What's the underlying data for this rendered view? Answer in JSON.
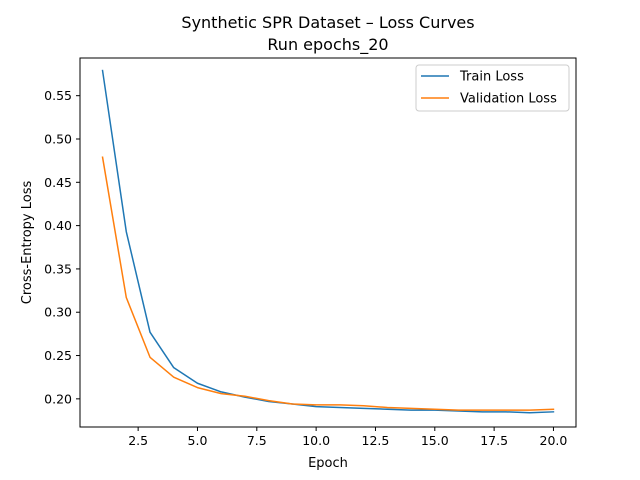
{
  "chart_data": {
    "type": "line",
    "title": "Synthetic SPR Dataset – Loss Curves",
    "subtitle": "Run epochs_20",
    "xlabel": "Epoch",
    "ylabel": "Cross-Entropy Loss",
    "xlim": [
      0.05,
      20.95
    ],
    "ylim": [
      0.1675,
      0.5935
    ],
    "xticks": [
      2.5,
      5.0,
      7.5,
      10.0,
      12.5,
      15.0,
      17.5,
      20.0
    ],
    "xtick_labels": [
      "2.5",
      "5.0",
      "7.5",
      "10.0",
      "12.5",
      "15.0",
      "17.5",
      "20.0"
    ],
    "yticks": [
      0.2,
      0.25,
      0.3,
      0.35,
      0.4,
      0.45,
      0.5,
      0.55
    ],
    "ytick_labels": [
      "0.20",
      "0.25",
      "0.30",
      "0.35",
      "0.40",
      "0.45",
      "0.50",
      "0.55"
    ],
    "grid": false,
    "legend_position": "upper right",
    "x": [
      1,
      2,
      3,
      4,
      5,
      6,
      7,
      8,
      9,
      10,
      11,
      12,
      13,
      14,
      15,
      16,
      17,
      18,
      19,
      20
    ],
    "series": [
      {
        "name": "Train Loss",
        "color": "#1f77b4",
        "values": [
          0.579,
          0.393,
          0.277,
          0.236,
          0.218,
          0.208,
          0.202,
          0.197,
          0.194,
          0.191,
          0.19,
          0.189,
          0.188,
          0.187,
          0.187,
          0.186,
          0.185,
          0.185,
          0.184,
          0.185
        ]
      },
      {
        "name": "Validation Loss",
        "color": "#ff7f0e",
        "values": [
          0.479,
          0.317,
          0.248,
          0.225,
          0.213,
          0.206,
          0.203,
          0.198,
          0.194,
          0.193,
          0.193,
          0.192,
          0.19,
          0.189,
          0.188,
          0.187,
          0.187,
          0.187,
          0.187,
          0.188
        ]
      }
    ]
  }
}
